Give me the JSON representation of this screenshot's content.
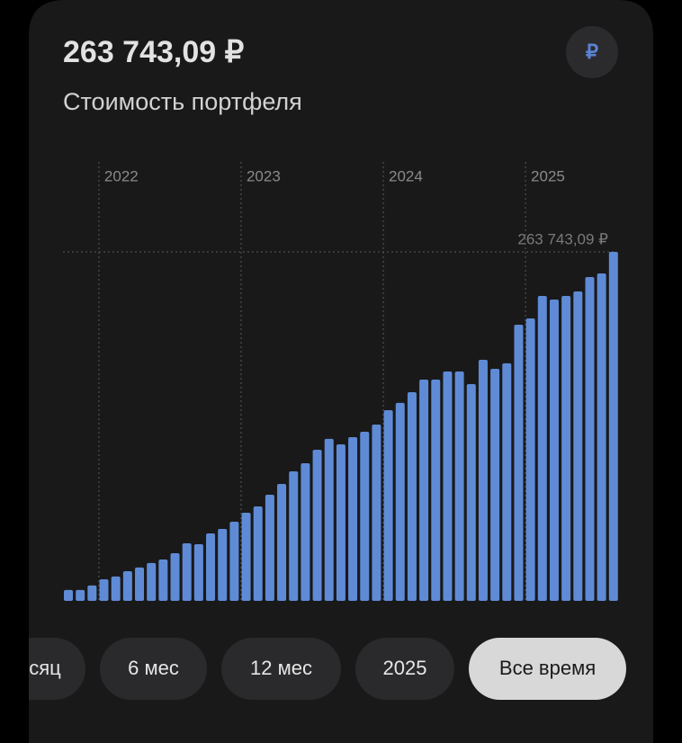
{
  "header": {
    "value": "263 743,09 ₽",
    "subtitle": "Стоимость портфеля",
    "currency_icon": "₽"
  },
  "chart_data": {
    "type": "bar",
    "categories": [
      null,
      null,
      null,
      "2022",
      null,
      null,
      null,
      null,
      null,
      null,
      null,
      null,
      null,
      null,
      null,
      "2023",
      null,
      null,
      null,
      null,
      null,
      null,
      null,
      null,
      null,
      null,
      null,
      "2024",
      null,
      null,
      null,
      null,
      null,
      null,
      null,
      null,
      null,
      null,
      null,
      "2025",
      null,
      null,
      null,
      null,
      null,
      null,
      null
    ],
    "values": [
      8200,
      8200,
      11600,
      16300,
      18400,
      22400,
      25200,
      28600,
      31300,
      36000,
      43500,
      42800,
      51000,
      54400,
      59800,
      66600,
      71400,
      80200,
      88400,
      97900,
      104000,
      114200,
      122400,
      118300,
      123700,
      127800,
      133200,
      144100,
      149600,
      157700,
      167200,
      167200,
      173300,
      173300,
      163800,
      182200,
      175400,
      179500,
      208700,
      213400,
      230400,
      227700,
      230400,
      233800,
      244700,
      247400,
      263743.09
    ],
    "max_label": "263 743,09 ₽",
    "color": "#5f8bd6",
    "ylim": [
      0,
      263743.09
    ]
  },
  "periods": {
    "options": [
      "сяц",
      "6 мес",
      "12 мес",
      "2025",
      "Все время"
    ],
    "selected": 4
  }
}
